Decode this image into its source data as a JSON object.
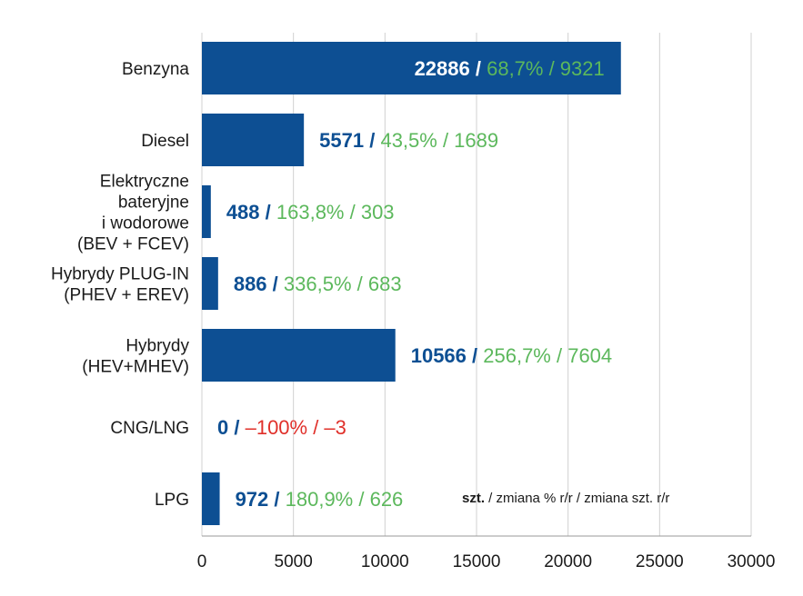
{
  "chart_data": {
    "type": "bar",
    "orientation": "horizontal",
    "categories": [
      [
        "Benzyna"
      ],
      [
        "Diesel"
      ],
      [
        "Elektryczne",
        "bateryjne",
        "i wodorowe",
        "(BEV + FCEV)"
      ],
      [
        "Hybrydy PLUG-IN",
        "(PHEV + EREV)"
      ],
      [
        "Hybrydy",
        "(HEV+MHEV)"
      ],
      [
        "CNG/LNG"
      ],
      [
        "LPG"
      ]
    ],
    "values": [
      22886,
      5571,
      488,
      886,
      10566,
      0,
      972
    ],
    "value_labels": [
      {
        "main": "22886",
        "sep": " / ",
        "rest": "68,7% / 9321",
        "inside": true,
        "rest_color": "#5cb85c"
      },
      {
        "main": "5571",
        "sep": " / ",
        "rest": "43,5% / 1689",
        "inside": false,
        "rest_color": "#5cb85c"
      },
      {
        "main": "488",
        "sep": " / ",
        "rest": "163,8% / 303",
        "inside": false,
        "rest_color": "#5cb85c"
      },
      {
        "main": "886",
        "sep": " / ",
        "rest": "336,5% / 683",
        "inside": false,
        "rest_color": "#5cb85c"
      },
      {
        "main": "10566",
        "sep": " / ",
        "rest": "256,7% / 7604",
        "inside": false,
        "rest_color": "#5cb85c"
      },
      {
        "main": "0",
        "sep": " / ",
        "rest": "–100% / –3",
        "inside": false,
        "rest_color": "#e0302a"
      },
      {
        "main": "972",
        "sep": " / ",
        "rest": "180,9% / 626",
        "inside": false,
        "rest_color": "#5cb85c"
      }
    ],
    "xlim": [
      0,
      30000
    ],
    "xticks": [
      "0",
      "5000",
      "10000",
      "15000",
      "20000",
      "25000",
      "30000"
    ],
    "grid": "vertical",
    "note": {
      "bold": "szt.",
      "rest": " / zmiana % r/r / zmiana szt. r/r"
    },
    "colors": {
      "bar": "#0d4f93",
      "main_text_outside": "#0d4f93",
      "main_text_inside": "#ffffff",
      "positive": "#5cb85c",
      "negative": "#e0302a",
      "grid": "#d0d0d0"
    }
  }
}
